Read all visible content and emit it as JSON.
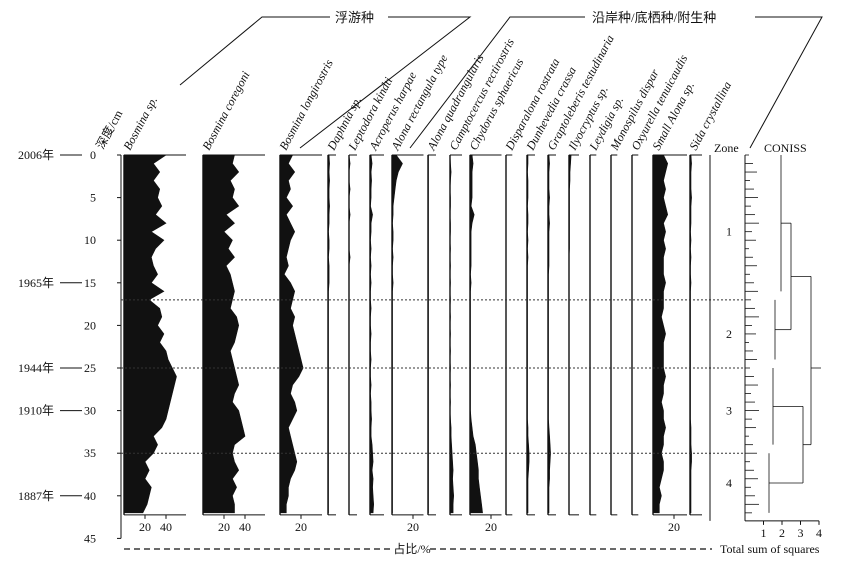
{
  "chart_data": {
    "type": "area",
    "subtype": "stratigraphic-diagram",
    "y_axis": {
      "label": "深度/cm",
      "ticks": [
        0,
        5,
        10,
        15,
        20,
        25,
        30,
        35,
        40,
        45
      ],
      "range": [
        0,
        45
      ],
      "reversed": true,
      "dates": [
        {
          "depth": 0,
          "label": "2006年"
        },
        {
          "depth": 15,
          "label": "1965年"
        },
        {
          "depth": 25,
          "label": "1944年"
        },
        {
          "depth": 30,
          "label": "1910年"
        },
        {
          "depth": 40,
          "label": "1887年"
        }
      ]
    },
    "depths": [
      0,
      1,
      2,
      3,
      4,
      5,
      6,
      7,
      8,
      9,
      10,
      11,
      12,
      13,
      14,
      15,
      16,
      17,
      18,
      19,
      20,
      21,
      22,
      23,
      24,
      25,
      26,
      27,
      28,
      29,
      30,
      31,
      32,
      33,
      34,
      35,
      36,
      37,
      38,
      39,
      40,
      41,
      42
    ],
    "groups": [
      {
        "label": "浮游种",
        "from": 0,
        "to": 2
      },
      {
        "label": "沿岸种/底栖种/附生种",
        "from": 3,
        "to": 21
      }
    ],
    "series": [
      {
        "name": "Bosmina sp.",
        "xmax": 50,
        "ticks": [
          20,
          40
        ],
        "values": [
          40,
          28,
          34,
          28,
          34,
          32,
          36,
          30,
          40,
          26,
          38,
          30,
          26,
          28,
          32,
          26,
          38,
          24,
          34,
          36,
          32,
          38,
          34,
          40,
          42,
          46,
          50,
          48,
          46,
          44,
          42,
          40,
          36,
          28,
          32,
          28,
          20,
          24,
          20,
          26,
          24,
          22,
          18
        ]
      },
      {
        "name": "Bosmina coregoni",
        "xmax": 50,
        "ticks": [
          20,
          40
        ],
        "values": [
          30,
          28,
          34,
          26,
          30,
          28,
          34,
          22,
          30,
          20,
          28,
          24,
          30,
          22,
          26,
          28,
          30,
          28,
          26,
          32,
          34,
          32,
          30,
          26,
          28,
          30,
          32,
          34,
          30,
          28,
          34,
          36,
          38,
          40,
          30,
          28,
          30,
          34,
          28,
          32,
          28,
          30,
          30
        ]
      },
      {
        "name": "Bosmina longirostris",
        "xmax": 30,
        "ticks": [
          20
        ],
        "values": [
          12,
          8,
          14,
          8,
          10,
          6,
          12,
          6,
          10,
          14,
          10,
          8,
          6,
          8,
          4,
          10,
          14,
          12,
          10,
          14,
          12,
          14,
          16,
          18,
          20,
          22,
          18,
          12,
          10,
          14,
          16,
          12,
          8,
          10,
          12,
          14,
          16,
          14,
          10,
          8,
          8,
          6,
          6
        ]
      },
      {
        "name": "Daphnia sp.",
        "xmax": 6,
        "ticks": [],
        "values": [
          1,
          1.5,
          1,
          1.5,
          1,
          1,
          1.5,
          1,
          1,
          0.5,
          1,
          1,
          0.5,
          1,
          1,
          1,
          0.5,
          0.5,
          0.5,
          0.5,
          0.5,
          0.5,
          0.5,
          0.5,
          0.5,
          0.5,
          0.5,
          0.5,
          0.5,
          0.5,
          0.5,
          0.5,
          0.5,
          0.5,
          0.5,
          0.5,
          0.5,
          0.5,
          0.5,
          0.5,
          0.5,
          0.5,
          0.5
        ]
      },
      {
        "name": "Leptodora kindti",
        "xmax": 6,
        "ticks": [],
        "values": [
          0,
          1,
          0,
          0,
          1,
          0,
          0,
          1,
          0,
          0,
          0,
          0,
          1,
          0,
          0,
          0,
          0,
          0,
          0,
          0,
          0,
          0,
          0,
          0,
          0,
          0,
          0,
          0,
          0,
          0,
          0,
          0,
          0,
          0,
          0,
          0,
          0,
          0,
          0,
          0,
          0,
          0,
          0
        ]
      },
      {
        "name": "Acroperus harpae",
        "xmax": 6,
        "ticks": [],
        "values": [
          1,
          2,
          1,
          1.5,
          1,
          1,
          0.5,
          2.5,
          1,
          1,
          0.5,
          1,
          0.5,
          1,
          0.5,
          1,
          0.5,
          0.5,
          1,
          0.5,
          0.5,
          1,
          0.5,
          0.5,
          1,
          0.5,
          0.5,
          1,
          0.5,
          1,
          1,
          1.5,
          1,
          1,
          2,
          2.5,
          3,
          2,
          3,
          2.5,
          3,
          3.5,
          3
        ]
      },
      {
        "name": "Alona rectangula type",
        "xmax": 30,
        "ticks": [
          20
        ],
        "values": [
          4,
          10,
          6,
          4,
          3,
          2,
          1,
          1,
          0.5,
          1,
          1,
          0.5,
          1,
          0.5,
          0.5,
          1,
          0.5,
          0.5,
          0.5,
          0.5,
          0.5,
          0.5,
          0.5,
          0.5,
          0.5,
          0.5,
          0.5,
          0.5,
          0.5,
          0.5,
          0.5,
          0.5,
          0.5,
          0.5,
          0.5,
          0.5,
          0.5,
          0.5,
          0.5,
          0.5,
          0.5,
          0.5,
          0.5
        ]
      },
      {
        "name": "Alona quadrangularis",
        "xmax": 6,
        "ticks": [],
        "values": [
          0.5,
          0.5,
          0.5,
          0.5,
          0.5,
          0.5,
          0.5,
          0.5,
          0.5,
          0.5,
          0.5,
          0.5,
          0.5,
          0.5,
          0.5,
          0.5,
          0.5,
          0.5,
          0.5,
          0.5,
          0.5,
          0.5,
          0.5,
          0.5,
          0.5,
          0.5,
          0.5,
          0.5,
          0.5,
          0.5,
          0.5,
          0.5,
          0.5,
          0.5,
          0.5,
          0.5,
          0.5,
          0.5,
          0.5,
          0.5,
          0.5,
          0.5,
          0.5
        ]
      },
      {
        "name": "Camptocercus rectirostris",
        "xmax": 6,
        "ticks": [],
        "values": [
          0,
          0.5,
          1,
          0.5,
          0,
          0.5,
          0.5,
          0,
          0.5,
          0.5,
          0,
          0.5,
          0,
          0.5,
          0,
          0.5,
          0,
          0.5,
          0,
          0.5,
          0,
          0.5,
          0,
          0.5,
          0,
          0.5,
          0,
          0.5,
          0,
          0.5,
          0,
          0.5,
          1,
          1,
          1.5,
          2,
          2.5,
          3,
          2.5,
          3,
          3.5,
          3,
          3
        ]
      },
      {
        "name": "Chydorus sphaericus",
        "xmax": 30,
        "ticks": [
          20
        ],
        "values": [
          2,
          3,
          2,
          2,
          2,
          2,
          1,
          4,
          2,
          1,
          1,
          1,
          1,
          1,
          0.5,
          1,
          0.5,
          0.5,
          0.5,
          0.5,
          0.5,
          0.5,
          0.5,
          0.5,
          0.5,
          0.5,
          0.5,
          0.5,
          0.5,
          0.5,
          0.5,
          1,
          2,
          3,
          5,
          6,
          7,
          8,
          8,
          9,
          10,
          11,
          12
        ]
      },
      {
        "name": "Disparalona rostrata",
        "xmax": 6,
        "ticks": [],
        "values": [
          0,
          0,
          0,
          0,
          0,
          0,
          0,
          0,
          0,
          0,
          0,
          0,
          0,
          0,
          0,
          0,
          0,
          0,
          0,
          0,
          0,
          0,
          0,
          0,
          0,
          0,
          0,
          0,
          0,
          0,
          0,
          0,
          0,
          0,
          0,
          0,
          0,
          0,
          0,
          0,
          0,
          0,
          0
        ]
      },
      {
        "name": "Dunhevedia crassa",
        "xmax": 6,
        "ticks": [],
        "values": [
          1,
          1,
          0.5,
          1,
          1,
          1,
          0.5,
          1,
          1,
          0.5,
          1,
          0.5,
          1,
          0.5,
          0.5,
          0.5,
          0.5,
          0.5,
          0.5,
          0.5,
          0.5,
          0.5,
          0.5,
          0.5,
          0.5,
          0.5,
          0.5,
          0.5,
          0.5,
          0.5,
          0.5,
          0.5,
          1,
          1,
          1.5,
          2,
          2,
          1.5,
          1,
          1,
          1,
          1,
          1
        ]
      },
      {
        "name": "Graptoleberis testudinaria",
        "xmax": 6,
        "ticks": [],
        "values": [
          1,
          1.5,
          1,
          1,
          1,
          1.5,
          1,
          1,
          1.5,
          1,
          1,
          1,
          1,
          1,
          0.5,
          0.5,
          0.5,
          0.5,
          0.5,
          0.5,
          0.5,
          0.5,
          0.5,
          0.5,
          0.5,
          0.5,
          0.5,
          0.5,
          0.5,
          0.5,
          0.5,
          0.5,
          1,
          1.5,
          2,
          2.5,
          2,
          1.5,
          1.5,
          1,
          1,
          1,
          1
        ]
      },
      {
        "name": "Ilyocryptus sp.",
        "xmax": 6,
        "ticks": [],
        "values": [
          2,
          1.5,
          1,
          1,
          0.5,
          0.5,
          0.5,
          0.5,
          0.5,
          0.5,
          0.5,
          0.5,
          0,
          0,
          0,
          0,
          0,
          0,
          0,
          0,
          0,
          0,
          0,
          0,
          0,
          0,
          0,
          0,
          0,
          0,
          0,
          0,
          0,
          0,
          0,
          0,
          0,
          0,
          0,
          0,
          0,
          0,
          0
        ]
      },
      {
        "name": "Leydigia sp.",
        "xmax": 6,
        "ticks": [],
        "values": [
          0,
          0,
          0,
          0,
          0,
          0,
          0,
          0,
          0,
          0,
          0,
          0,
          0,
          0,
          0,
          0,
          0,
          0,
          0,
          0,
          0,
          0,
          0,
          0,
          0,
          0,
          0,
          0,
          0,
          0,
          0,
          0,
          0,
          0,
          0,
          0,
          0,
          0,
          0,
          0,
          0,
          0,
          0
        ]
      },
      {
        "name": "Monospilus dispar",
        "xmax": 6,
        "ticks": [],
        "values": [
          0,
          0,
          0,
          0,
          0,
          0,
          0,
          0,
          0,
          0,
          0,
          0,
          0,
          0,
          0,
          0,
          0,
          0,
          0,
          0,
          0,
          0,
          0,
          0,
          0,
          0,
          0,
          0,
          0,
          0,
          0,
          0,
          0,
          0,
          0,
          0,
          0,
          0,
          0,
          0,
          0,
          0,
          0
        ]
      },
      {
        "name": "Oxyurella tenuicaudis",
        "xmax": 6,
        "ticks": [],
        "values": [
          0,
          0,
          0,
          0,
          0,
          0,
          0,
          0,
          0,
          0,
          0,
          0,
          0,
          0,
          0,
          0,
          0,
          0,
          0,
          0,
          0,
          0,
          0,
          0,
          0,
          0,
          0,
          0,
          0,
          0,
          0,
          0,
          0,
          0,
          0,
          0,
          0,
          0,
          0,
          0,
          0,
          0,
          0
        ]
      },
      {
        "name": "Small Alona sp.",
        "xmax": 30,
        "ticks": [
          20
        ],
        "values": [
          10,
          14,
          12,
          10,
          12,
          10,
          12,
          14,
          10,
          12,
          10,
          12,
          10,
          10,
          10,
          12,
          10,
          10,
          10,
          8,
          10,
          12,
          10,
          10,
          10,
          10,
          12,
          10,
          10,
          8,
          10,
          10,
          12,
          10,
          10,
          8,
          10,
          10,
          8,
          6,
          8,
          6,
          6
        ]
      },
      {
        "name": "Sida crystallina",
        "xmax": 6,
        "ticks": [],
        "values": [
          1,
          1.5,
          1,
          1,
          1,
          1.5,
          1,
          1,
          1,
          0.5,
          1,
          0.5,
          1,
          0.5,
          0.5,
          1,
          0.5,
          0.5,
          0.5,
          0.5,
          0.5,
          0.5,
          0.5,
          0.5,
          0.5,
          0.5,
          0.5,
          0.5,
          0.5,
          0.5,
          0.5,
          0.5,
          1,
          1,
          1,
          1.5,
          1.5,
          1,
          1,
          1,
          1,
          1,
          1
        ]
      }
    ],
    "x_axis_label": "占比/%",
    "zones": {
      "label": "Zone",
      "boundaries": [
        17,
        25,
        35
      ],
      "items": [
        {
          "label": "1",
          "depth": 9
        },
        {
          "label": "2",
          "depth": 21
        },
        {
          "label": "3",
          "depth": 30
        },
        {
          "label": "4",
          "depth": 38.5
        }
      ]
    },
    "coniss": {
      "title": "CONISS",
      "xlabel": "Total sum of squares",
      "ticks": [
        1,
        2,
        3,
        4
      ],
      "range": [
        0,
        4
      ]
    }
  }
}
